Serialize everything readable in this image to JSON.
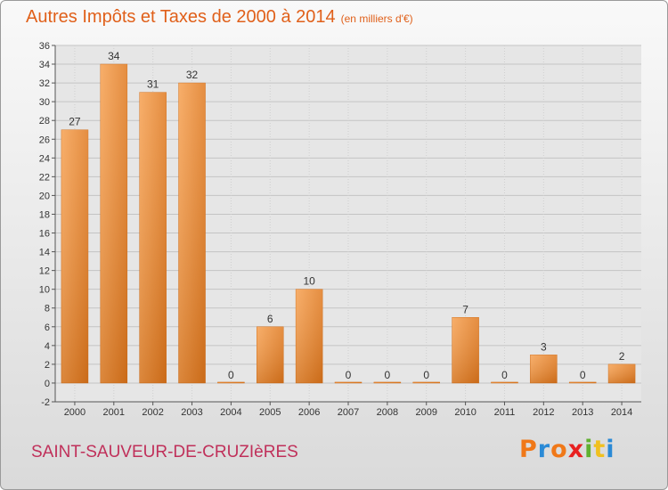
{
  "chart_data": {
    "type": "bar",
    "title": "Autres Impôts et Taxes de 2000 à 2014",
    "subtitle": "(en milliers d'€)",
    "categories": [
      "2000",
      "2001",
      "2002",
      "2003",
      "2004",
      "2005",
      "2006",
      "2007",
      "2008",
      "2009",
      "2010",
      "2011",
      "2012",
      "2013",
      "2014"
    ],
    "values": [
      27,
      34,
      31,
      32,
      0,
      6,
      10,
      0,
      0,
      0,
      7,
      0,
      3,
      0,
      2
    ],
    "ylim": [
      -2,
      36
    ],
    "yticks": [
      -2,
      0,
      2,
      4,
      6,
      8,
      10,
      12,
      14,
      16,
      18,
      20,
      22,
      24,
      26,
      28,
      30,
      32,
      34,
      36
    ],
    "grid": true,
    "bar_color": "#f08a30"
  },
  "footer": {
    "commune": "SAINT-SAUVEUR-DE-CRUZIèRES",
    "brand": [
      "P",
      "r",
      "o",
      "x",
      "i",
      "t",
      "i"
    ],
    "brand_colors": [
      "#f07818",
      "#2a8ad6",
      "#f07818",
      "#e82020",
      "#60b030",
      "#f0c020",
      "#2a8ad6"
    ]
  }
}
